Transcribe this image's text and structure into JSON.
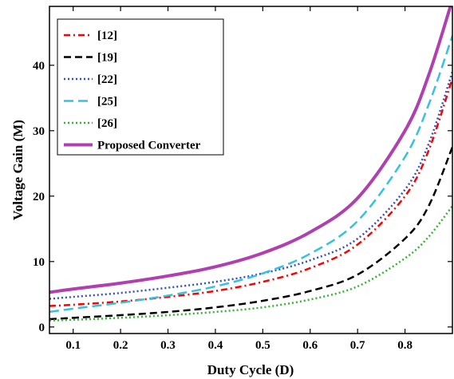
{
  "chart_data": {
    "type": "line",
    "title": "",
    "xlabel": "Duty Cycle (D)",
    "ylabel": "Voltage Gain (M)",
    "xlim": [
      0.05,
      0.9
    ],
    "ylim": [
      -1,
      49
    ],
    "xticks": [
      0.1,
      0.2,
      0.3,
      0.4,
      0.5,
      0.6,
      0.7,
      0.8
    ],
    "xtick_labels": [
      "0.1",
      "0.2",
      "0.3",
      "0.4",
      "0.5",
      "0.6",
      "0.7",
      "0.8"
    ],
    "yticks": [
      0,
      10,
      20,
      30,
      40
    ],
    "ytick_labels": [
      "0",
      "10",
      "20",
      "30",
      "40"
    ],
    "grid": false,
    "legend_position": "top-left",
    "series": [
      {
        "name": "[12]",
        "color": "#ff0000",
        "dash": "dash-dot",
        "x": [
          0.05,
          0.1,
          0.2,
          0.3,
          0.4,
          0.5,
          0.6,
          0.7,
          0.8,
          0.85,
          0.9
        ],
        "y": [
          3.2,
          3.4,
          3.9,
          4.6,
          5.5,
          6.9,
          9.0,
          12.6,
          20.0,
          27.0,
          38.0
        ]
      },
      {
        "name": "[19]",
        "color": "#000000",
        "dash": "dash",
        "x": [
          0.05,
          0.1,
          0.2,
          0.3,
          0.4,
          0.5,
          0.6,
          0.7,
          0.8,
          0.85,
          0.9
        ],
        "y": [
          1.2,
          1.4,
          1.8,
          2.3,
          3.0,
          4.0,
          5.5,
          8.0,
          13.5,
          18.5,
          27.5
        ]
      },
      {
        "name": "[22]",
        "color": "#3050c8",
        "dash": "dot",
        "x": [
          0.05,
          0.1,
          0.2,
          0.3,
          0.4,
          0.5,
          0.6,
          0.7,
          0.8,
          0.85,
          0.9
        ],
        "y": [
          4.3,
          4.6,
          5.2,
          6.0,
          6.9,
          8.2,
          10.2,
          13.5,
          21.0,
          28.0,
          39.0
        ]
      },
      {
        "name": "[25]",
        "color": "#33c3e0",
        "dash": "long-dash",
        "x": [
          0.05,
          0.1,
          0.2,
          0.3,
          0.4,
          0.5,
          0.6,
          0.7,
          0.8,
          0.85,
          0.9
        ],
        "y": [
          2.3,
          2.8,
          3.7,
          4.8,
          6.2,
          8.2,
          11.2,
          16.2,
          26.0,
          34.0,
          44.5
        ]
      },
      {
        "name": "[26]",
        "color": "#33b533",
        "dash": "dot",
        "x": [
          0.05,
          0.1,
          0.2,
          0.3,
          0.4,
          0.5,
          0.6,
          0.7,
          0.8,
          0.85,
          0.9
        ],
        "y": [
          1.0,
          1.1,
          1.4,
          1.8,
          2.3,
          3.0,
          4.2,
          6.2,
          10.5,
          13.8,
          18.5
        ]
      },
      {
        "name": "Proposed Converter",
        "color": "#b040b0",
        "dash": "solid",
        "x": [
          0.05,
          0.1,
          0.2,
          0.3,
          0.4,
          0.5,
          0.6,
          0.7,
          0.8,
          0.85,
          0.9
        ],
        "y": [
          5.3,
          5.8,
          6.7,
          7.8,
          9.2,
          11.3,
          14.5,
          19.7,
          30.0,
          38.5,
          50.0
        ]
      }
    ]
  }
}
